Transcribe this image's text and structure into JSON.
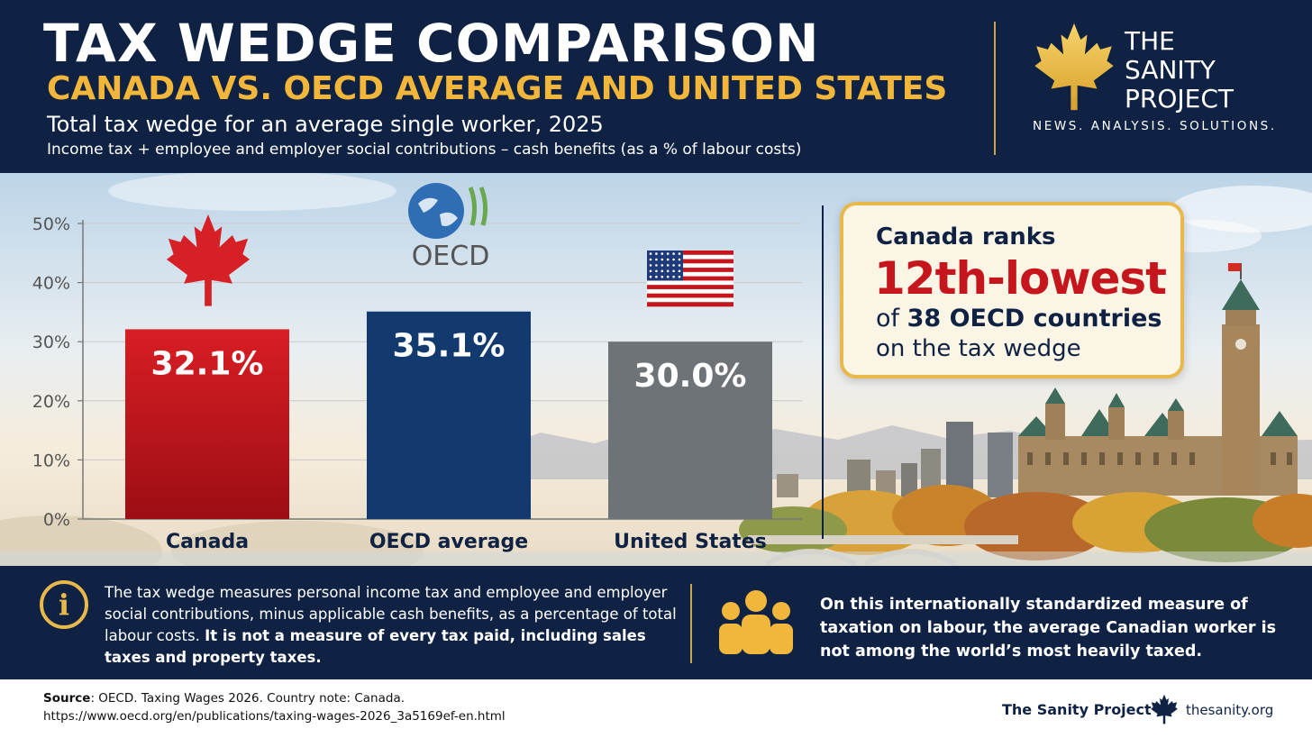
{
  "header": {
    "title": "TAX WEDGE COMPARISON",
    "subtitle": "CANADA VS. OECD AVERAGE AND UNITED STATES",
    "caption": "Total tax wedge for an average single worker, 2025",
    "formula": "Income tax + employee and employer social contributions – cash benefits (as a % of labour costs)"
  },
  "brand": {
    "name_line1": "THE",
    "name_line2": "SANITY",
    "name_line3": "PROJECT",
    "tagline": "NEWS. ANALYSIS. SOLUTIONS.",
    "logo_icon": "maple-leaf-icon"
  },
  "chart_data": {
    "type": "bar",
    "categories": [
      "Canada",
      "OECD average",
      "United States"
    ],
    "values": [
      32.1,
      35.1,
      30.0
    ],
    "value_labels": [
      "32.1%",
      "35.1%",
      "30.0%"
    ],
    "colors": [
      "#c4161c",
      "#123a6e",
      "#6e7378"
    ],
    "ylim": [
      0,
      50
    ],
    "yticks": [
      "0%",
      "10%",
      "20%",
      "30%",
      "40%",
      "50%"
    ],
    "grid": true,
    "category_icons": [
      "maple-leaf-flag-icon",
      "oecd-logo-icon",
      "us-flag-icon"
    ],
    "oecd_logo_text": "OECD"
  },
  "rank": {
    "line1": "Canada ranks",
    "line2": "12th-lowest",
    "line3_prefix": "of ",
    "line3_bold": "38 OECD countries",
    "line4": "on the tax wedge"
  },
  "info": {
    "icon": "info-icon",
    "text_normal": "The tax wedge measures personal income tax and employee and employer social contributions, minus applicable cash benefits, as a percentage of total labour costs. ",
    "text_bold": "It is not a measure of every tax paid, including sales taxes and property taxes.",
    "people_icon": "people-icon",
    "right_text": "On this internationally standardized measure of taxation on labour, the average Canadian worker is not among the world’s most heavily taxed."
  },
  "footer": {
    "source_label": "Source",
    "source_text": ": OECD. Taxing Wages 2026. Country note: Canada.",
    "source_url": "https://www.oecd.org/en/publications/taxing-wages-2026_3a5169ef-en.html",
    "brand": "The Sanity Project",
    "url": "thesanity.org"
  },
  "colors": {
    "navy": "#0f2244",
    "gold": "#e8b84a",
    "red": "#c4161c"
  }
}
